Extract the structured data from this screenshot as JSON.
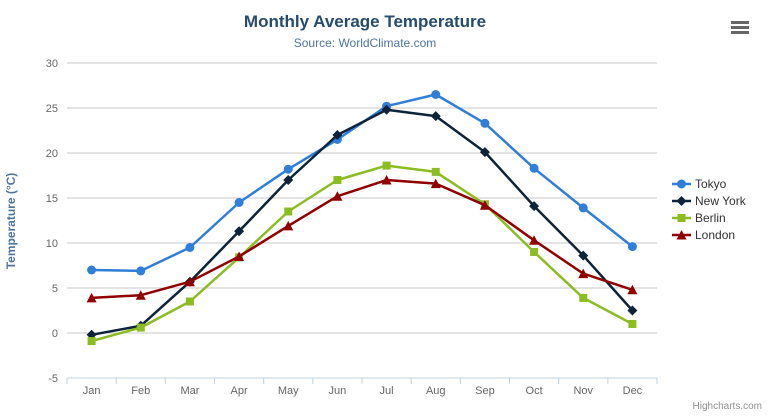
{
  "chart_data": {
    "type": "line",
    "title": "Monthly Average Temperature",
    "subtitle": "Source: WorldClimate.com",
    "xlabel": "",
    "ylabel": "Temperature (°C)",
    "ylim": [
      -5,
      30
    ],
    "ytick_step": 5,
    "grid": "horizontal",
    "legend_position": "right",
    "categories": [
      "Jan",
      "Feb",
      "Mar",
      "Apr",
      "May",
      "Jun",
      "Jul",
      "Aug",
      "Sep",
      "Oct",
      "Nov",
      "Dec"
    ],
    "series": [
      {
        "name": "Tokyo",
        "color": "#2f7ed8",
        "marker": "circle",
        "values": [
          7.0,
          6.9,
          9.5,
          14.5,
          18.2,
          21.5,
          25.2,
          26.5,
          23.3,
          18.3,
          13.9,
          9.6
        ]
      },
      {
        "name": "New York",
        "color": "#0d233a",
        "marker": "diamond",
        "values": [
          -0.2,
          0.8,
          5.7,
          11.3,
          17.0,
          22.0,
          24.8,
          24.1,
          20.1,
          14.1,
          8.6,
          2.5
        ]
      },
      {
        "name": "Berlin",
        "color": "#8bbc21",
        "marker": "square",
        "values": [
          -0.9,
          0.6,
          3.5,
          8.4,
          13.5,
          17.0,
          18.6,
          17.9,
          14.3,
          9.0,
          3.9,
          1.0
        ]
      },
      {
        "name": "London",
        "color": "#910000",
        "marker": "triangle",
        "values": [
          3.9,
          4.2,
          5.7,
          8.5,
          11.9,
          15.2,
          17.0,
          16.6,
          14.2,
          10.3,
          6.6,
          4.8
        ]
      }
    ]
  },
  "credits": "Highcharts.com",
  "icons": {
    "context_menu": "hamburger-menu"
  },
  "style": {
    "grid_color": "#C8C8C8",
    "axis_line_color": "#C0D0E0",
    "tick_label_color": "#666666"
  }
}
